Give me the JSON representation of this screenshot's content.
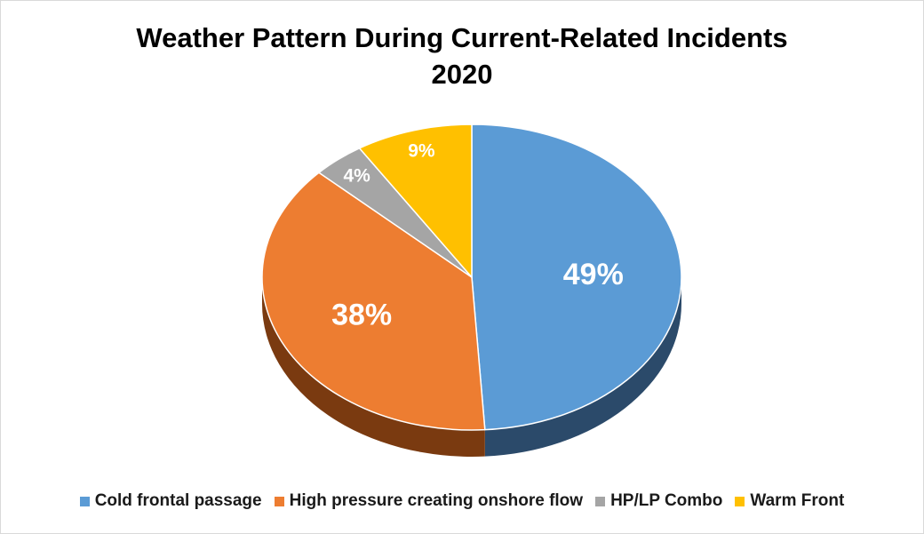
{
  "chart_data": {
    "type": "pie",
    "title": "Weather Pattern During Current-Related Incidents",
    "subtitle": "2020",
    "series": [
      {
        "name": "Cold frontal passage",
        "value": 49,
        "label": "49%",
        "color": "#5b9bd5",
        "side_color": "#2b4a6a"
      },
      {
        "name": "High pressure creating onshore flow",
        "value": 38,
        "label": "38%",
        "color": "#ed7d31",
        "side_color": "#7a3a10"
      },
      {
        "name": "HP/LP Combo",
        "value": 4,
        "label": "4%",
        "color": "#a5a5a5",
        "side_color": "#555555"
      },
      {
        "name": "Warm Front",
        "value": 9,
        "label": "9%",
        "color": "#ffc000",
        "side_color": "#8a6500"
      }
    ],
    "legend_position": "bottom"
  }
}
